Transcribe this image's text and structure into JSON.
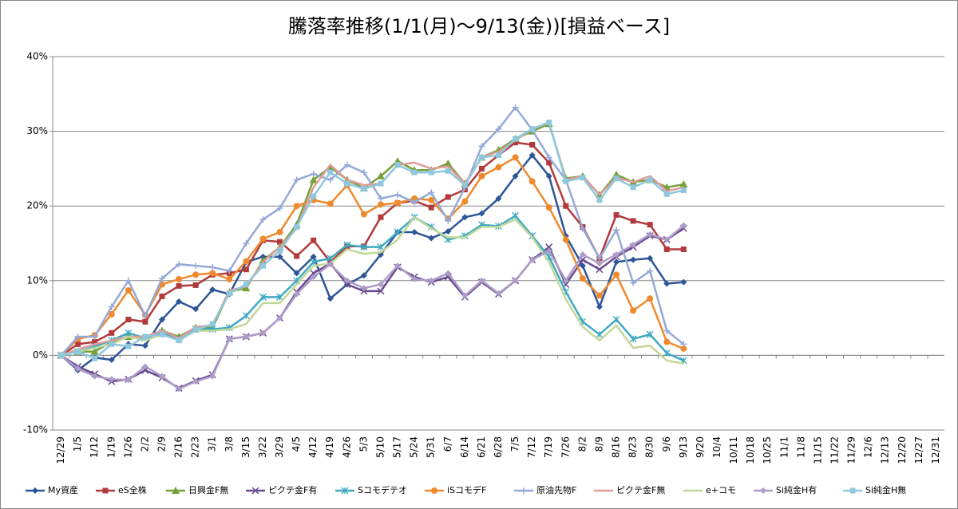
{
  "chart_data": {
    "type": "line",
    "title": "騰落率推移(1/1(月)～9/13(金))[損益ベース]",
    "categories": [
      "12/29",
      "1/5",
      "1/12",
      "1/19",
      "1/26",
      "2/2",
      "2/9",
      "2/16",
      "2/23",
      "3/1",
      "3/8",
      "3/15",
      "3/22",
      "3/29",
      "4/5",
      "4/12",
      "4/19",
      "4/26",
      "5/3",
      "5/10",
      "5/17",
      "5/24",
      "5/31",
      "6/7",
      "6/14",
      "6/21",
      "6/28",
      "7/5",
      "7/12",
      "7/19",
      "7/26",
      "8/2",
      "8/9",
      "8/16",
      "8/23",
      "8/30",
      "9/6",
      "9/13",
      "9/20",
      "10/4",
      "10/11",
      "10/18",
      "10/25",
      "11/1",
      "11/8",
      "11/15",
      "11/22",
      "11/29",
      "12/6",
      "12/13",
      "12/20",
      "12/27",
      "12/31"
    ],
    "ylim": [
      -10,
      40
    ],
    "yticks": [
      {
        "value": -10,
        "label": "-10%"
      },
      {
        "value": 0,
        "label": "0%"
      },
      {
        "value": 10,
        "label": "10%"
      },
      {
        "value": 20,
        "label": "20%"
      },
      {
        "value": 30,
        "label": "30%"
      },
      {
        "value": 40,
        "label": "40%"
      }
    ],
    "grid": true,
    "legend": "bottom",
    "series": [
      {
        "name": "My資産",
        "color": "#2e5597",
        "marker": "diamond",
        "values": [
          0,
          -2,
          -0.3,
          -0.6,
          1.5,
          1.3,
          4.8,
          7.2,
          6.2,
          8.8,
          8.2,
          12.5,
          13.2,
          13.2,
          11,
          13.2,
          7.6,
          9.5,
          10.7,
          13.5,
          16.5,
          16.5,
          15.7,
          16.6,
          18.5,
          19,
          21,
          24,
          26.8,
          24,
          16,
          12,
          6.5,
          12.5,
          12.8,
          13,
          9.6,
          9.8,
          null,
          null,
          null,
          null,
          null,
          null,
          null,
          null,
          null,
          null,
          null,
          null,
          null,
          null,
          null
        ]
      },
      {
        "name": "eS全株",
        "color": "#b23a3a",
        "marker": "square",
        "values": [
          0,
          1.5,
          1.8,
          3,
          4.8,
          4.5,
          7.9,
          9.3,
          9.4,
          10.8,
          11,
          11.5,
          15.4,
          15.2,
          13.3,
          15.4,
          12.5,
          14.6,
          14.6,
          18.5,
          20.4,
          20.7,
          19.8,
          21.2,
          22.2,
          25,
          26.8,
          28.5,
          28.2,
          25.8,
          20,
          17.2,
          13,
          18.8,
          18,
          17.5,
          14.2,
          14.2,
          null,
          null,
          null,
          null,
          null,
          null,
          null,
          null,
          null,
          null,
          null,
          null,
          null,
          null,
          null
        ]
      },
      {
        "name": "日興金F無",
        "color": "#77a03a",
        "marker": "triangle",
        "values": [
          0,
          0.5,
          0.5,
          1.8,
          2.5,
          2.4,
          3.3,
          2.5,
          3.7,
          3.7,
          8.5,
          9,
          12.7,
          14.5,
          17.5,
          23.5,
          25.2,
          23.5,
          22.4,
          24,
          26,
          24.8,
          24.8,
          25.7,
          23,
          26.5,
          27.5,
          29,
          30,
          31,
          23.7,
          24,
          21.5,
          24.2,
          23.2,
          23.5,
          22.5,
          22.9,
          null,
          null,
          null,
          null,
          null,
          null,
          null,
          null,
          null,
          null,
          null,
          null,
          null,
          null,
          null
        ]
      },
      {
        "name": "ピクテ金F有",
        "color": "#6a4a8f",
        "marker": "x",
        "values": [
          0,
          -1.5,
          -2.5,
          -3.5,
          -3.2,
          -2,
          -3,
          -4.4,
          -3.4,
          -2.6,
          2.2,
          2.5,
          3,
          5,
          8.5,
          11,
          12.3,
          9.5,
          8.6,
          8.6,
          11.8,
          10.5,
          9.8,
          10.5,
          7.8,
          9.8,
          8.2,
          10,
          12.8,
          14.5,
          9.5,
          12.8,
          11.5,
          13.2,
          14.5,
          16,
          15.5,
          17,
          null,
          null,
          null,
          null,
          null,
          null,
          null,
          null,
          null,
          null,
          null,
          null,
          null,
          null,
          null
        ]
      },
      {
        "name": "Sコモデテオ",
        "color": "#3fa9c2",
        "marker": "asterisk",
        "values": [
          0,
          0.5,
          1.2,
          2,
          3,
          2.3,
          3,
          2.2,
          3.5,
          3.5,
          3.7,
          5.3,
          7.8,
          7.8,
          10,
          12.5,
          13,
          14.8,
          14.5,
          14.5,
          16.5,
          18.5,
          17.2,
          15.5,
          16,
          17.5,
          17.3,
          18.7,
          16,
          13.2,
          8.5,
          4.5,
          2.8,
          4.8,
          2.2,
          2.8,
          0.3,
          -0.7,
          null,
          null,
          null,
          null,
          null,
          null,
          null,
          null,
          null,
          null,
          null,
          null,
          null,
          null,
          null
        ]
      },
      {
        "name": "iSコモデF",
        "color": "#ee8a2e",
        "marker": "circle",
        "values": [
          0,
          2.2,
          2.7,
          5.5,
          8.7,
          5.4,
          9.5,
          10.2,
          10.8,
          11,
          10.2,
          12.6,
          15.6,
          16.5,
          20,
          20.8,
          20.3,
          22.8,
          18.9,
          20.2,
          20.4,
          21,
          20.8,
          18.3,
          20.6,
          24,
          25.2,
          26.5,
          23.3,
          19.8,
          15.5,
          10.3,
          8,
          10.8,
          6,
          7.6,
          1.8,
          0.9,
          null,
          null,
          null,
          null,
          null,
          null,
          null,
          null,
          null,
          null,
          null,
          null,
          null,
          null,
          null
        ]
      },
      {
        "name": "原油先物F",
        "color": "#94a9d8",
        "marker": "plus",
        "values": [
          0,
          2.5,
          2.5,
          6.5,
          10,
          5.3,
          10.3,
          12.2,
          12,
          11.8,
          11.3,
          15,
          18.2,
          19.7,
          23.5,
          24.3,
          23.5,
          25.5,
          24.5,
          21,
          21.5,
          20.5,
          21.8,
          18,
          22.5,
          28,
          30.3,
          33.2,
          30.2,
          26.5,
          23.5,
          17,
          13,
          16.8,
          9.7,
          11.3,
          3.3,
          1.5,
          null,
          null,
          null,
          null,
          null,
          null,
          null,
          null,
          null,
          null,
          null,
          null,
          null,
          null,
          null
        ]
      },
      {
        "name": "ピクテ金F無",
        "color": "#df9b9b",
        "marker": "none",
        "values": [
          0,
          0.8,
          1.5,
          2,
          2.5,
          2.5,
          3.3,
          2.3,
          3.8,
          4,
          8.7,
          9.2,
          12.5,
          14.5,
          17,
          22.5,
          25.5,
          23.5,
          22.8,
          23,
          25.5,
          25.8,
          25,
          25.3,
          23,
          26.5,
          27.3,
          28.8,
          30.3,
          31.2,
          23.5,
          24,
          21.5,
          23.8,
          23.2,
          24,
          22,
          22.5,
          null,
          null,
          null,
          null,
          null,
          null,
          null,
          null,
          null,
          null,
          null,
          null,
          null,
          null,
          null
        ]
      },
      {
        "name": "e+コモ",
        "color": "#c2d89a",
        "marker": "none",
        "values": [
          0,
          0.5,
          1,
          1.5,
          2.5,
          2,
          2.8,
          2,
          3.3,
          3.3,
          3.5,
          4.2,
          7,
          7,
          9.5,
          12,
          12.3,
          14.2,
          13.6,
          13.8,
          15.5,
          18.5,
          17,
          15.8,
          15.8,
          17.2,
          17.2,
          18.2,
          15.8,
          12.5,
          7.5,
          3.8,
          2,
          4,
          1,
          1.3,
          -0.7,
          -1.1,
          null,
          null,
          null,
          null,
          null,
          null,
          null,
          null,
          null,
          null,
          null,
          null,
          null,
          null,
          null
        ]
      },
      {
        "name": "Si純金H有",
        "color": "#ad9cc8",
        "marker": "diamond",
        "values": [
          0,
          -1.8,
          -2.8,
          -3.2,
          -3.3,
          -1.5,
          -2.8,
          -4.5,
          -3.5,
          -2.8,
          2.2,
          2.5,
          3,
          5,
          8.2,
          10.5,
          12.2,
          10,
          9,
          9.5,
          12,
          10.2,
          10,
          11,
          8,
          10,
          8.3,
          10,
          12.8,
          14,
          10,
          13.5,
          12.3,
          13.5,
          14.8,
          16.2,
          15.5,
          17.4,
          null,
          null,
          null,
          null,
          null,
          null,
          null,
          null,
          null,
          null,
          null,
          null,
          null,
          null,
          null
        ]
      },
      {
        "name": "Si純金H無",
        "color": "#8ec8de",
        "marker": "square",
        "values": [
          0,
          0.5,
          -0.4,
          1.5,
          1.2,
          2.5,
          2.8,
          2,
          3.4,
          4.2,
          8.3,
          9.5,
          12,
          14,
          17.2,
          21.3,
          24.5,
          23,
          22.3,
          23,
          25.5,
          24.5,
          24.5,
          24.7,
          22.8,
          26.5,
          26.8,
          29,
          30.3,
          31.2,
          23.3,
          23.8,
          20.8,
          23.7,
          22.5,
          23.5,
          21.6,
          22.1,
          null,
          null,
          null,
          null,
          null,
          null,
          null,
          null,
          null,
          null,
          null,
          null,
          null,
          null,
          null
        ]
      }
    ]
  }
}
